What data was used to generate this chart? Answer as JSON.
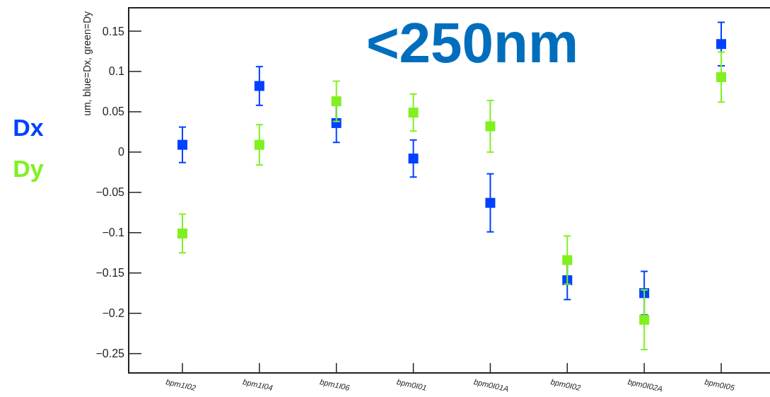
{
  "chart_data": {
    "type": "scatter",
    "ylabel": "um, blue=Dx, green=Dy",
    "annotations": [
      "<250nm"
    ],
    "categories": [
      "bpm1I02",
      "bpm1I04",
      "bpm1I06",
      "bpm0I01",
      "bpm0I01A",
      "bpm0I02",
      "bpm0I02A",
      "bpm0I05"
    ],
    "series": [
      {
        "name": "Dx",
        "color": "#0040ff",
        "values": [
          0.009,
          0.082,
          0.036,
          -0.008,
          -0.063,
          -0.159,
          -0.175,
          0.134
        ],
        "errors": [
          0.022,
          0.024,
          0.024,
          0.023,
          0.036,
          0.024,
          0.027,
          0.027
        ]
      },
      {
        "name": "Dy",
        "color": "#80f020",
        "values": [
          -0.101,
          0.009,
          0.063,
          0.049,
          0.032,
          -0.134,
          -0.208,
          0.093
        ],
        "errors": [
          0.024,
          0.025,
          0.025,
          0.023,
          0.032,
          0.03,
          0.037,
          0.031
        ]
      }
    ],
    "ylim": [
      -0.274,
      0.179
    ],
    "yticks": [
      {
        "value": -0.25,
        "label": "−0.25"
      },
      {
        "value": -0.2,
        "label": "−0.2"
      },
      {
        "value": -0.15,
        "label": "−0.15"
      },
      {
        "value": -0.1,
        "label": "−0.1"
      },
      {
        "value": -0.05,
        "label": "−0.05"
      },
      0,
      0.05,
      0.1,
      0.15
    ],
    "marker": "square",
    "grid": false
  }
}
